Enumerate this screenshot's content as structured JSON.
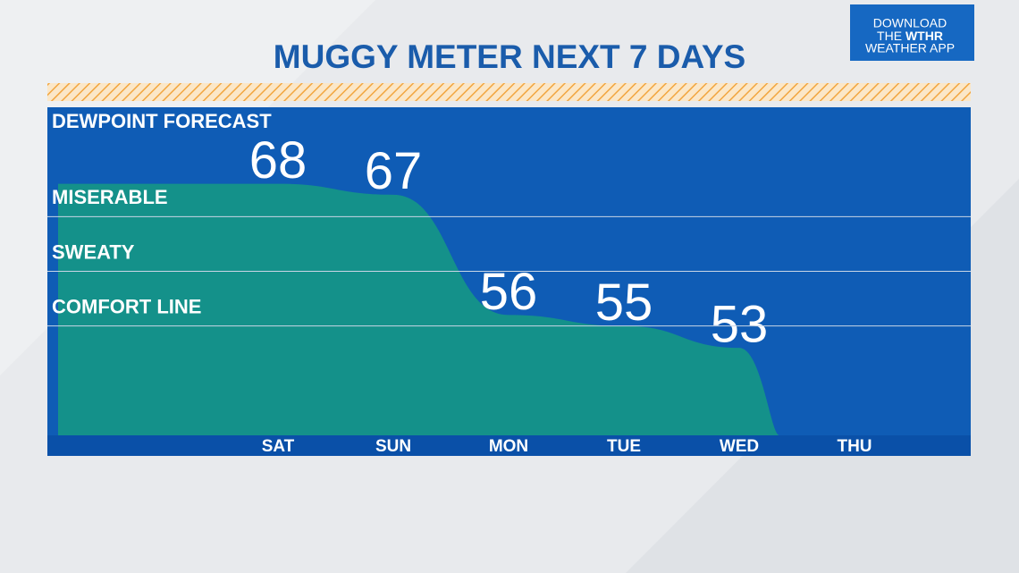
{
  "chart_data": {
    "type": "area",
    "title": "MUGGY METER NEXT 7 DAYS",
    "y_label": "DEWPOINT FORECAST",
    "categories": [
      "SAT",
      "SUN",
      "MON",
      "TUE",
      "WED",
      "THU"
    ],
    "values": [
      68,
      67,
      56,
      55,
      53,
      null
    ],
    "color": "#14918a",
    "ylim": [
      45,
      75
    ],
    "yticks": [
      {
        "value": 65,
        "label": "MISERABLE"
      },
      {
        "value": 60,
        "label": "SWEATY"
      },
      {
        "value": 55,
        "label": "COMFORT LINE"
      }
    ],
    "grid": true
  },
  "logo": [
    "DOWNLOAD",
    "THE",
    "WTHR",
    "WEATHER APP"
  ]
}
